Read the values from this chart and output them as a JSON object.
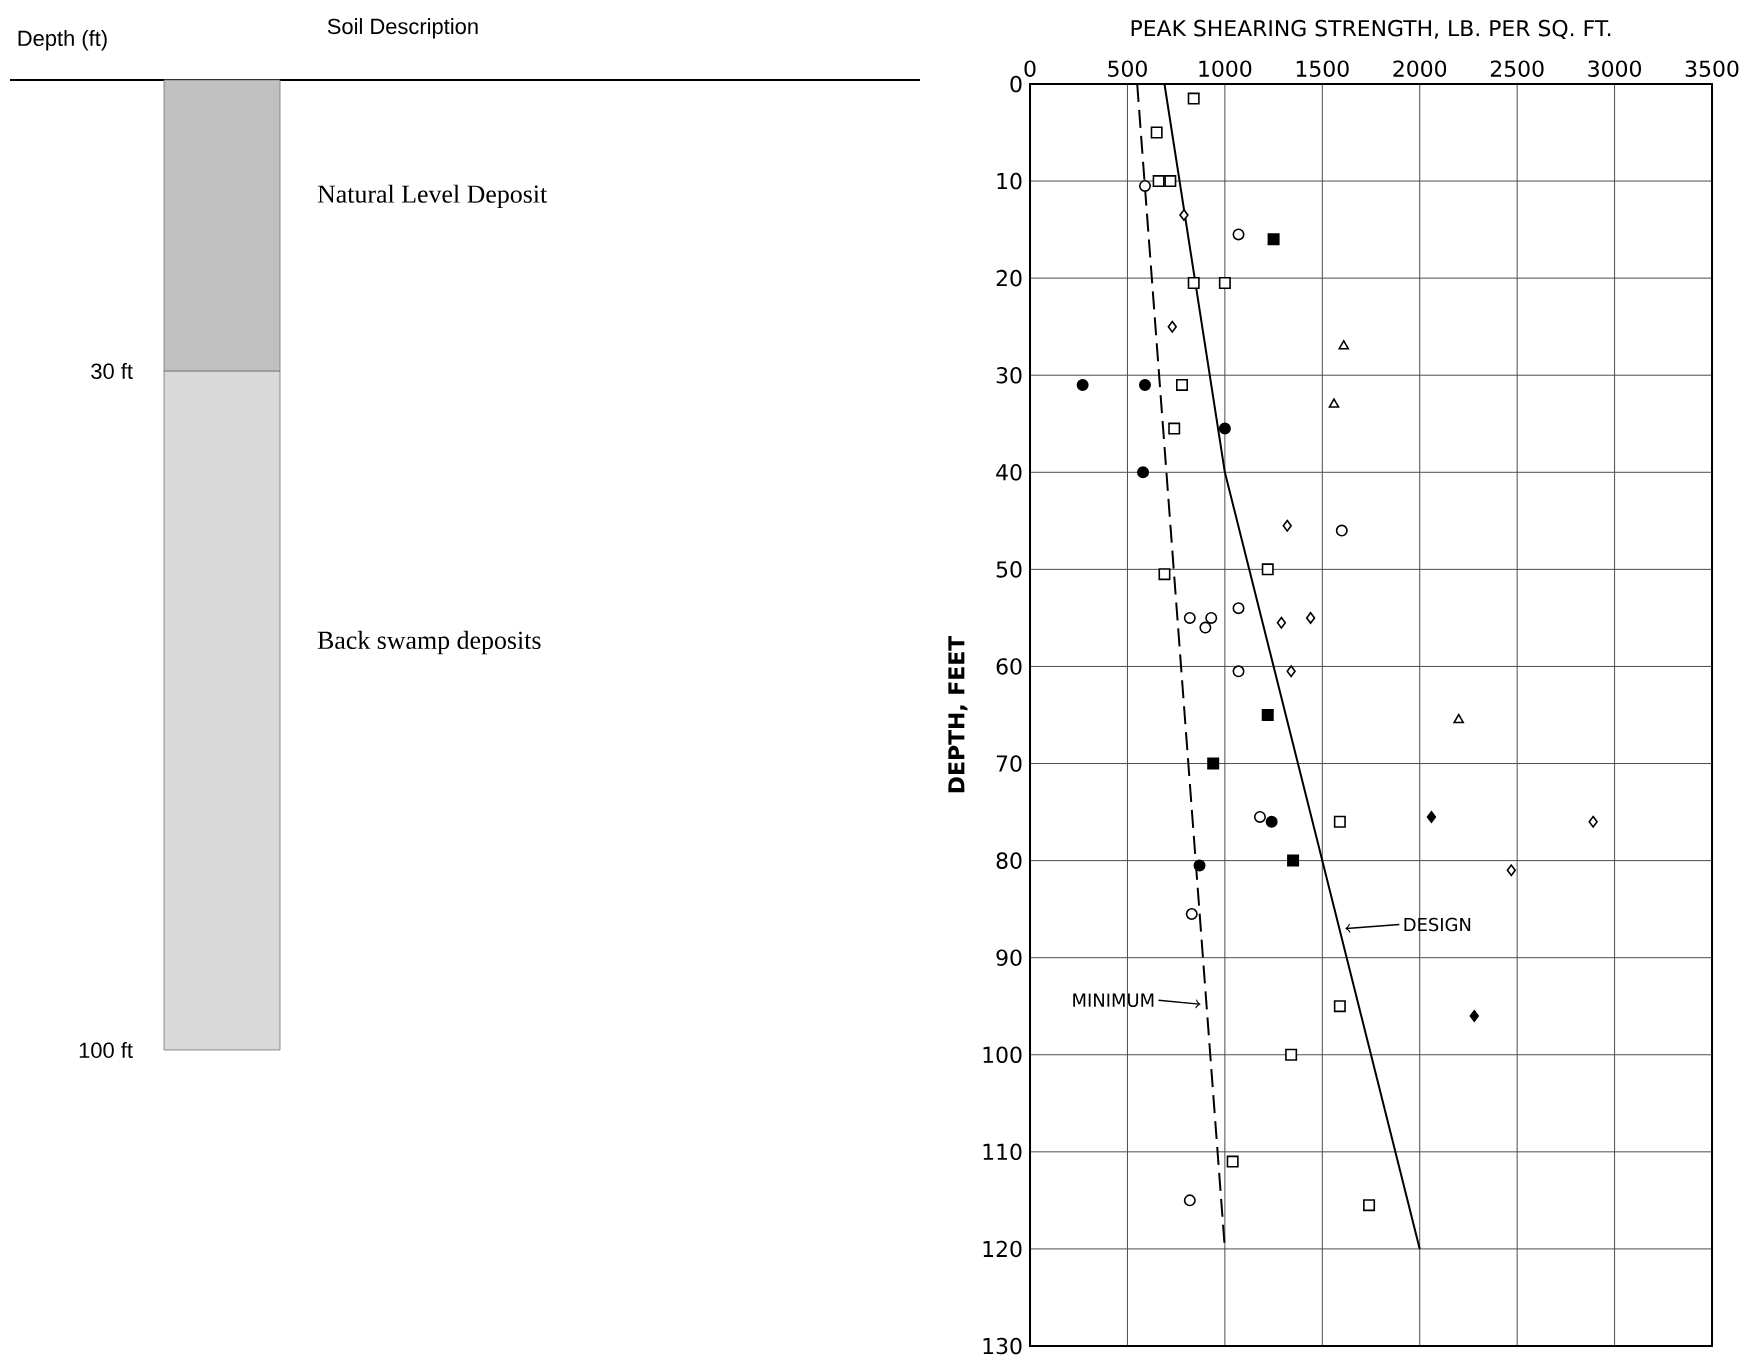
{
  "chart_data": [
    {
      "type": "bar",
      "stacked": true,
      "title": "Soil Description",
      "ylabel": "Depth (ft)",
      "categories": [
        null
      ],
      "ylim": [
        100,
        0
      ],
      "yticks": [
        {
          "value": 30,
          "label": "30 ft"
        },
        {
          "value": 100,
          "label": "100 ft"
        }
      ],
      "tick_labels": "y",
      "series": [
        {
          "name": "Natural Level Deposit",
          "color": "#c0c0c0",
          "values": [
            30
          ]
        },
        {
          "name": "Back swamp deposits",
          "color": "#d9d9d9",
          "values": [
            70
          ]
        }
      ]
    },
    {
      "type": "scatter",
      "xlabel": "PEAK SHEARING STRENGTH, LB. PER SQ. FT.",
      "ylabel": "DEPTH, FEET",
      "xlim": [
        0,
        3500
      ],
      "xticks": [
        0,
        500,
        1000,
        1500,
        2000,
        2500,
        3000,
        3500
      ],
      "ylim": [
        130,
        0
      ],
      "yticks": [
        0,
        10,
        20,
        30,
        40,
        50,
        60,
        70,
        80,
        90,
        100,
        110,
        120,
        130
      ],
      "grid": true,
      "series": [
        {
          "marker": "circle",
          "color": "#ffffff",
          "x": [
            590,
            1070,
            1600,
            1070,
            820,
            900,
            930,
            1070,
            1180,
            830,
            820
          ],
          "values": [
            10.5,
            15.5,
            46,
            54,
            55,
            56,
            55,
            60.5,
            75.5,
            85.5,
            115
          ]
        },
        {
          "marker": "square",
          "color": "#ffffff",
          "x": [
            840,
            650,
            660,
            720,
            840,
            1000,
            780,
            740,
            1220,
            690,
            1590,
            1590,
            1340,
            1040,
            1740
          ],
          "values": [
            1.5,
            5,
            10,
            10,
            20.5,
            20.5,
            31,
            35.5,
            50,
            50.5,
            76,
            95,
            100,
            111,
            115.5
          ]
        },
        {
          "marker": "diamond",
          "color": "#ffffff",
          "x": [
            790,
            730,
            1320,
            1290,
            1440,
            1340,
            2890,
            2470
          ],
          "values": [
            13.5,
            25,
            45.5,
            55.5,
            55,
            60.5,
            76,
            81
          ]
        },
        {
          "marker": "triangle",
          "color": "#ffffff",
          "x": [
            1610,
            1560,
            2200
          ],
          "values": [
            27,
            33,
            65.5
          ]
        },
        {
          "marker": "circle",
          "color": "#000000",
          "x": [
            270,
            590,
            1000,
            580,
            1240,
            870
          ],
          "values": [
            31,
            31,
            35.5,
            40,
            76,
            80.5
          ]
        },
        {
          "marker": "square",
          "color": "#000000",
          "x": [
            1250,
            1220,
            940,
            1350
          ],
          "values": [
            16,
            65,
            70,
            80
          ]
        },
        {
          "marker": "diamond",
          "color": "#000000",
          "x": [
            2060,
            2280
          ],
          "values": [
            75.5,
            96
          ]
        },
        {
          "type": "line",
          "name": "DESIGN",
          "color": "#000000",
          "line_style": "solid",
          "marker": "none",
          "x": [
            690,
            1000,
            2000
          ],
          "values": [
            0,
            40,
            120
          ]
        },
        {
          "type": "line",
          "name": "MINIMUM",
          "color": "#000000",
          "line_style": "dashed",
          "marker": "none",
          "x": [
            550,
            1000
          ],
          "values": [
            0,
            120
          ]
        }
      ]
    }
  ]
}
